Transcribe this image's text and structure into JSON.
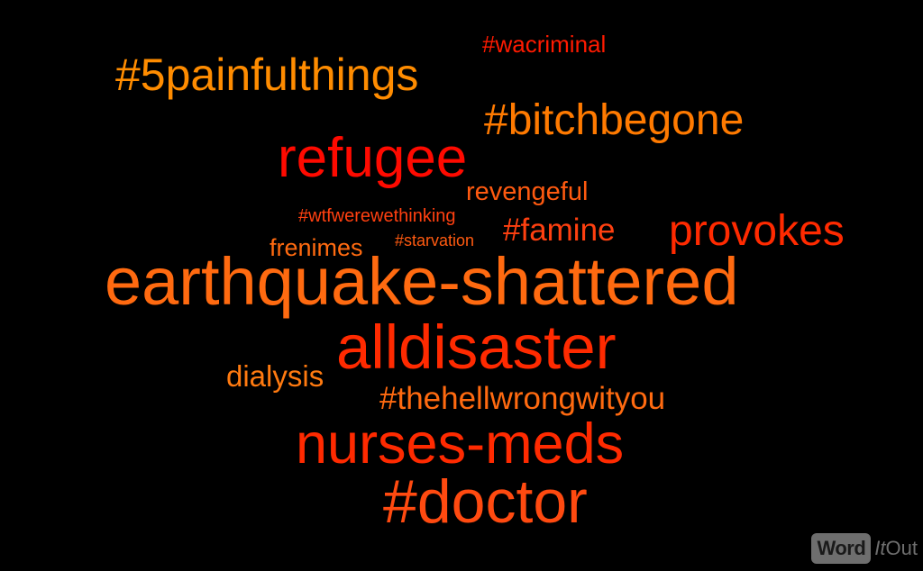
{
  "words": [
    {
      "id": "wacriminal",
      "text": "#wacriminal",
      "color": "#ff1a00"
    },
    {
      "id": "5painfulthings",
      "text": "#5painfulthings",
      "color": "#ff8c00"
    },
    {
      "id": "bitchbegone",
      "text": "#bitchbegone",
      "color": "#ff7a00"
    },
    {
      "id": "refugee",
      "text": "refugee",
      "color": "#ff0a00"
    },
    {
      "id": "revengeful",
      "text": "revengeful",
      "color": "#ff5a10"
    },
    {
      "id": "wtfwerewethinking",
      "text": "#wtfwerewethinking",
      "color": "#ff4010"
    },
    {
      "id": "famine",
      "text": "#famine",
      "color": "#ff4010"
    },
    {
      "id": "provokes",
      "text": "provokes",
      "color": "#ff2a00"
    },
    {
      "id": "frenimes",
      "text": "frenimes",
      "color": "#ff6a10"
    },
    {
      "id": "starvation",
      "text": "#starvation",
      "color": "#ff5a10"
    },
    {
      "id": "earthquake-shattered",
      "text": "earthquake-shattered",
      "color": "#ff6a10"
    },
    {
      "id": "alldisaster",
      "text": "alldisaster",
      "color": "#ff2a00"
    },
    {
      "id": "dialysis",
      "text": "dialysis",
      "color": "#ff7a10"
    },
    {
      "id": "thehellwrongwityou",
      "text": "#thehellwrongwityou",
      "color": "#ff6a10"
    },
    {
      "id": "nurses-meds",
      "text": "nurses-meds",
      "color": "#ff2a00"
    },
    {
      "id": "doctor",
      "text": "#doctor",
      "color": "#ff4a10"
    }
  ],
  "logo": {
    "word": "Word",
    "it": "It",
    "out": "Out"
  }
}
